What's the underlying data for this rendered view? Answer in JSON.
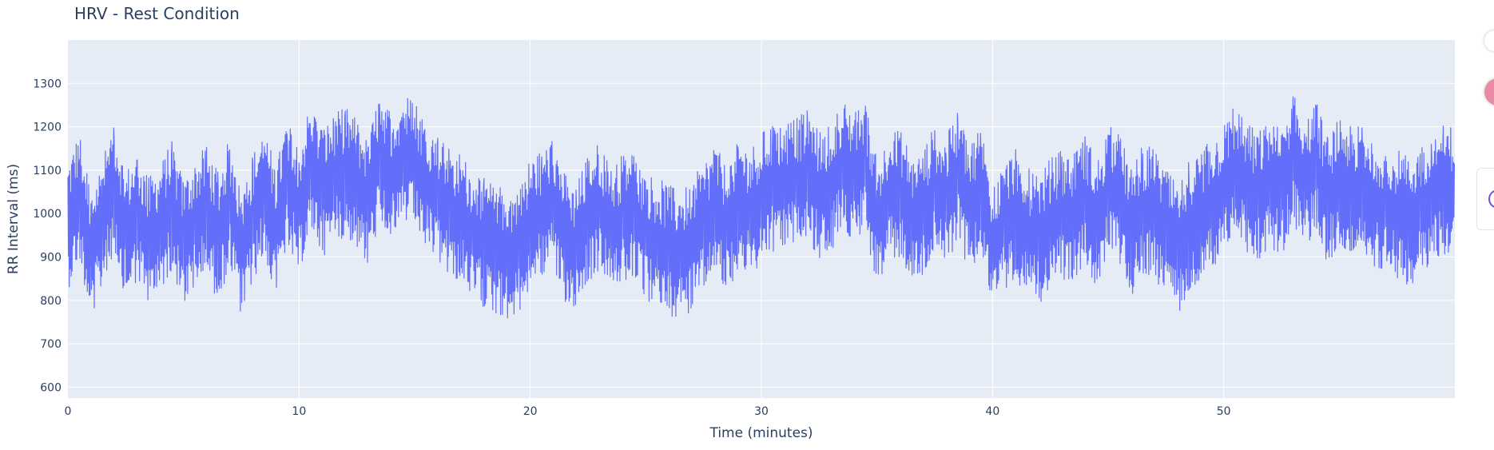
{
  "chart_data": {
    "type": "line",
    "title": "HRV - Rest Condition",
    "xlabel": "Time (minutes)",
    "ylabel": "RR Interval (ms)",
    "xlim": [
      0,
      60
    ],
    "ylim": [
      575,
      1400
    ],
    "x_ticks": [
      0,
      10,
      20,
      30,
      40,
      50
    ],
    "y_ticks": [
      600,
      700,
      800,
      900,
      1000,
      1100,
      1200,
      1300
    ],
    "grid": true,
    "legend": "none",
    "series": [
      {
        "x_step_minutes": 0.5,
        "x_start": 0,
        "values": [
          950,
          1080,
          830,
          960,
          1120,
          910,
          990,
          880,
          940,
          1030,
          870,
          960,
          1010,
          900,
          1050,
          830,
          980,
          1100,
          920,
          1150,
          1020,
          1200,
          1090,
          1140,
          1180,
          1120,
          1050,
          1250,
          1160,
          1230,
          1210,
          1120,
          1060,
          1000,
          980,
          920,
          880,
          850,
          830,
          840,
          960,
          1000,
          1050,
          900,
          850,
          980,
          1030,
          920,
          980,
          1000,
          900,
          880,
          850,
          820,
          870,
          940,
          1020,
          920,
          1050,
          1000,
          1070,
          1110,
          1120,
          1130,
          1160,
          1080,
          1100,
          1210,
          1150,
          1200,
          950,
          1060,
          1090,
          980,
          1000,
          1100,
          1050,
          1170,
          1020,
          1110,
          840,
          950,
          1000,
          920,
          890,
          960,
          1000,
          970,
          1070,
          950,
          1100,
          1060,
          920,
          1020,
          1000,
          920,
          840,
          950,
          1000,
          1040,
          1100,
          1200,
          1110,
          1070,
          1130,
          1080,
          1230,
          1120,
          1200,
          1050,
          1150,
          1090,
          1100,
          1050,
          1020,
          1000,
          960,
          1020,
          1060,
          1100
        ]
      }
    ]
  }
}
